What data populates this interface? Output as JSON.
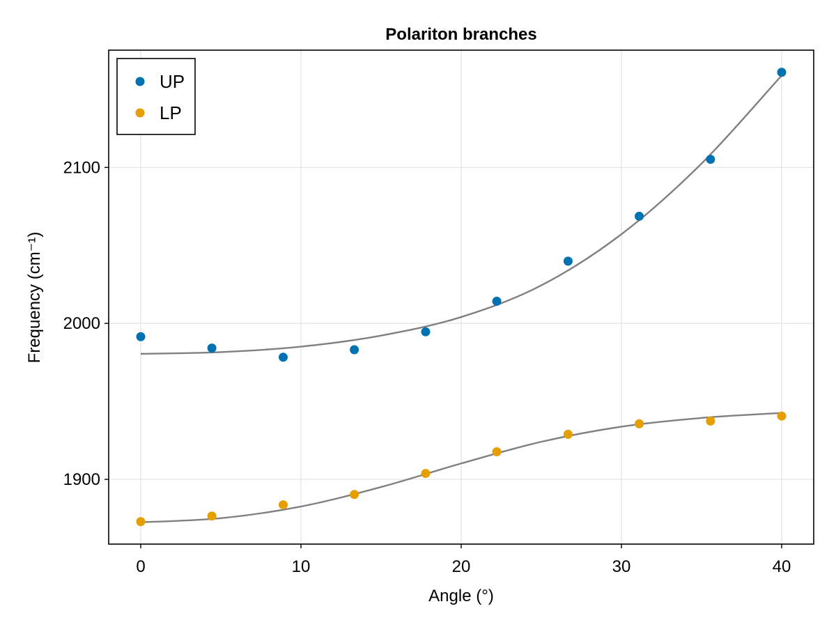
{
  "chart_data": {
    "type": "scatter",
    "title": "Polariton branches",
    "xlabel": "Angle (°)",
    "ylabel": "Frequency (cm⁻¹)",
    "xlim": [
      -2,
      42
    ],
    "ylim": [
      1858.5,
      2175.2
    ],
    "xticks": [
      0,
      10,
      20,
      30,
      40
    ],
    "yticks": [
      1900,
      2000,
      2100
    ],
    "grid": true,
    "legend_position": "top-left",
    "series": [
      {
        "name": "UP",
        "color": "#0072b2",
        "x": [
          0,
          4.44,
          8.89,
          13.33,
          17.78,
          22.22,
          26.67,
          31.11,
          35.56,
          40
        ],
        "y": [
          1991.5,
          1984.2,
          1978.3,
          1983.1,
          1994.6,
          2014.2,
          2039.9,
          2068.7,
          2105.2,
          2161.0
        ]
      },
      {
        "name": "LP",
        "color": "#e69f00",
        "x": [
          0,
          4.44,
          8.89,
          13.33,
          17.78,
          22.22,
          26.67,
          31.11,
          35.56,
          40
        ],
        "y": [
          1872.9,
          1876.5,
          1883.7,
          1890.3,
          1903.8,
          1917.7,
          1928.9,
          1935.6,
          1937.4,
          1940.6
        ]
      }
    ],
    "fit_curves": [
      {
        "color": "#808080",
        "x": [
          0,
          5,
          10,
          15,
          20,
          25,
          30,
          35,
          40
        ],
        "y": [
          1980.5,
          1981.6,
          1985.1,
          1992.2,
          2004.1,
          2024.4,
          2057.2,
          2102.5,
          2159.0
        ]
      },
      {
        "color": "#808080",
        "x": [
          0,
          5,
          10,
          15,
          20,
          25,
          30,
          35,
          40
        ],
        "y": [
          1872.5,
          1875.1,
          1882.6,
          1895.1,
          1910.2,
          1924.1,
          1933.8,
          1939.4,
          1942.6
        ]
      }
    ]
  }
}
